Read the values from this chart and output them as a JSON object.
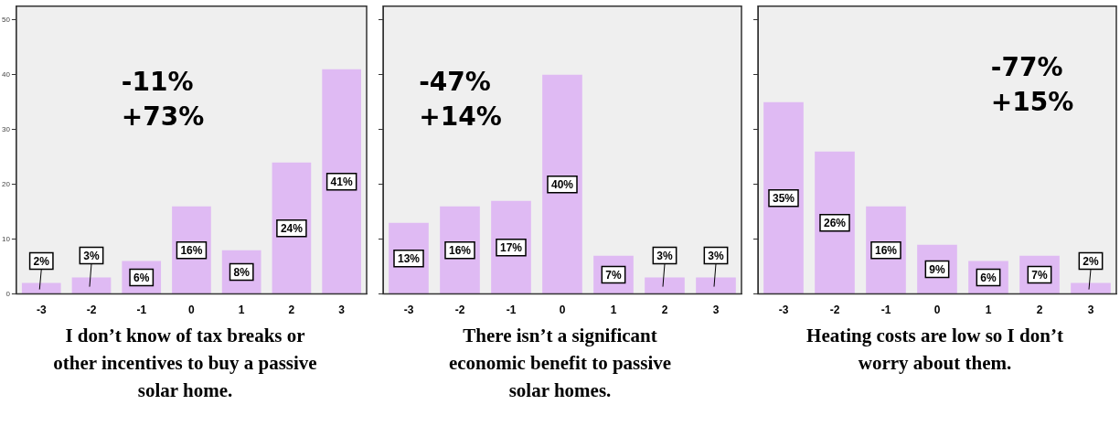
{
  "chart_data": [
    {
      "type": "bar",
      "categories": [
        "-3",
        "-2",
        "-1",
        "0",
        "1",
        "2",
        "3"
      ],
      "values": [
        2,
        3,
        6,
        16,
        8,
        24,
        41
      ],
      "value_labels": [
        "2%",
        "3%",
        "6%",
        "16%",
        "8%",
        "24%",
        "41%"
      ],
      "color": "#dfbaf3",
      "ylim": [
        0,
        52.5
      ],
      "yticks": [
        0,
        10,
        20,
        30,
        40,
        50
      ],
      "grid": false,
      "legend": false,
      "annotations": [
        "-11%",
        "+73%"
      ],
      "xlabel": "I don’t know of tax breaks or other incentives to buy a passive solar home."
    },
    {
      "type": "bar",
      "categories": [
        "-3",
        "-2",
        "-1",
        "0",
        "1",
        "2",
        "3"
      ],
      "values": [
        13,
        16,
        17,
        40,
        7,
        3,
        3
      ],
      "value_labels": [
        "13%",
        "16%",
        "17%",
        "40%",
        "7%",
        "3%",
        "3%"
      ],
      "color": "#dfbaf3",
      "ylim": [
        0,
        52.5
      ],
      "yticks": [
        {
          "value": 0,
          "label": null
        },
        {
          "value": 10,
          "label": null
        },
        {
          "value": 20,
          "label": null
        },
        {
          "value": 30,
          "label": null
        },
        {
          "value": 40,
          "label": null
        },
        {
          "value": 50,
          "label": null
        }
      ],
      "tick_labels": "x",
      "grid": false,
      "legend": false,
      "annotations": [
        "-47%",
        "+14%"
      ],
      "xlabel": "There isn’t a significant economic benefit to passive solar homes."
    },
    {
      "type": "bar",
      "categories": [
        "-3",
        "-2",
        "-1",
        "0",
        "1",
        "2",
        "3"
      ],
      "values": [
        35,
        26,
        16,
        9,
        6,
        7,
        2
      ],
      "value_labels": [
        "35%",
        "26%",
        "16%",
        "9%",
        "6%",
        "7%",
        "2%"
      ],
      "color": "#dfbaf3",
      "ylim": [
        0,
        52.5
      ],
      "yticks": [
        {
          "value": 0,
          "label": null
        },
        {
          "value": 10,
          "label": null
        },
        {
          "value": 20,
          "label": null
        },
        {
          "value": 30,
          "label": null
        },
        {
          "value": 40,
          "label": null
        },
        {
          "value": 50,
          "label": null
        }
      ],
      "tick_labels": "x",
      "grid": false,
      "legend": false,
      "annotations": [
        "-77%",
        "+15%"
      ],
      "xlabel": "Heating costs are low so I don’t worry about them."
    }
  ]
}
